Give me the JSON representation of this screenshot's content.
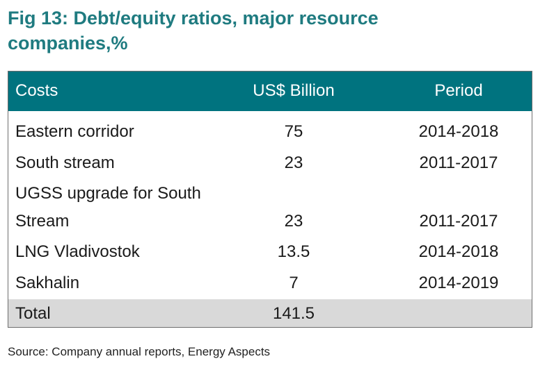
{
  "title": "Fig 13: Debt/equity ratios, major resource companies,%",
  "table": {
    "headers": [
      "Costs",
      "US$ Billion",
      "Period"
    ],
    "rows": [
      {
        "cost": "Eastern corridor",
        "value": "75",
        "period": "2014-2018"
      },
      {
        "cost": "South stream",
        "value": "23",
        "period": "2011-2017"
      },
      {
        "cost_line1": "UGSS upgrade for South",
        "cost_line2": "Stream",
        "value": "23",
        "period": "2011-2017"
      },
      {
        "cost": "LNG Vladivostok",
        "value": "13.5",
        "period": "2014-2018"
      },
      {
        "cost": "Sakhalin",
        "value": "7",
        "period": "2014-2019"
      }
    ],
    "total": {
      "label": "Total",
      "value": "141.5",
      "period": ""
    }
  },
  "source": "Source: Company annual reports, Energy Aspects",
  "colors": {
    "title": "#1f7b80",
    "header_bg": "#00737f",
    "total_bg": "#d9d9d9",
    "border": "#6e6e6e"
  }
}
